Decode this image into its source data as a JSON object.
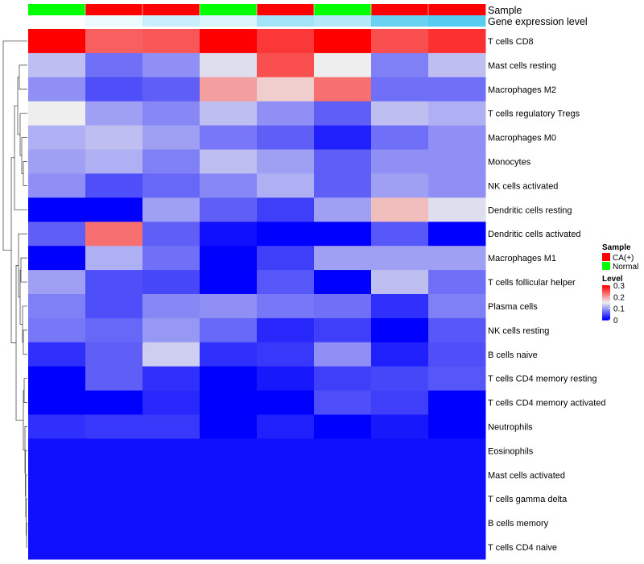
{
  "chart_data": {
    "type": "heatmap",
    "annotations": {
      "sample_label": "Sample",
      "expression_label": "Gene expression level",
      "sample": [
        "Normal",
        "CA(+)",
        "CA(+)",
        "Normal",
        "CA(+)",
        "Normal",
        "CA(+)",
        "CA(+)"
      ],
      "expression_level": [
        0.0,
        0.1,
        0.3,
        0.2,
        0.5,
        0.4,
        0.8,
        0.9
      ]
    },
    "rows": [
      "T cells CD8",
      "Mast cells resting",
      "Macrophages M2",
      "T cells regulatory  Tregs",
      "Macrophages M0",
      "Monocytes",
      "NK cells activated",
      "Dendritic cells resting",
      "Dendritic cells activated",
      "Macrophages M1",
      "T cells follicular helper",
      "Plasma cells",
      "NK cells resting",
      "B cells naive",
      "T cells CD4 memory resting",
      "T cells CD4 memory activated",
      "Neutrophils",
      "Eosinophils",
      "Mast cells activated",
      "T cells gamma delta",
      "B cells memory",
      "T cells CD4 naive"
    ],
    "values": [
      [
        0.3,
        0.24,
        0.245,
        0.3,
        0.265,
        0.3,
        0.25,
        0.27
      ],
      [
        0.12,
        0.07,
        0.09,
        0.14,
        0.25,
        0.15,
        0.08,
        0.12
      ],
      [
        0.09,
        0.05,
        0.06,
        0.2,
        0.17,
        0.23,
        0.07,
        0.07
      ],
      [
        0.15,
        0.1,
        0.085,
        0.12,
        0.09,
        0.06,
        0.12,
        0.11
      ],
      [
        0.11,
        0.12,
        0.1,
        0.075,
        0.06,
        0.02,
        0.07,
        0.09
      ],
      [
        0.1,
        0.11,
        0.08,
        0.12,
        0.1,
        0.06,
        0.09,
        0.09
      ],
      [
        0.09,
        0.05,
        0.065,
        0.085,
        0.11,
        0.06,
        0.1,
        0.09
      ],
      [
        0.0,
        0.0,
        0.1,
        0.06,
        0.04,
        0.1,
        0.18,
        0.14
      ],
      [
        0.06,
        0.23,
        0.06,
        0.01,
        0.0,
        0.0,
        0.055,
        0.0
      ],
      [
        0.0,
        0.11,
        0.07,
        0.0,
        0.04,
        0.1,
        0.1,
        0.1
      ],
      [
        0.1,
        0.05,
        0.045,
        0.0,
        0.055,
        0.0,
        0.12,
        0.07
      ],
      [
        0.08,
        0.05,
        0.085,
        0.09,
        0.075,
        0.07,
        0.03,
        0.08
      ],
      [
        0.075,
        0.065,
        0.095,
        0.065,
        0.025,
        0.04,
        0.0,
        0.055
      ],
      [
        0.03,
        0.06,
        0.13,
        0.03,
        0.035,
        0.09,
        0.02,
        0.05
      ],
      [
        0.0,
        0.06,
        0.03,
        0.0,
        0.015,
        0.04,
        0.045,
        0.055
      ],
      [
        0.0,
        0.0,
        0.025,
        0.0,
        0.0,
        0.05,
        0.04,
        0.0
      ],
      [
        0.03,
        0.035,
        0.035,
        0.0,
        0.02,
        0.0,
        0.015,
        0.0
      ],
      [
        0.01,
        0.01,
        0.01,
        0.01,
        0.01,
        0.01,
        0.01,
        0.01
      ],
      [
        0.01,
        0.01,
        0.01,
        0.01,
        0.01,
        0.01,
        0.01,
        0.01
      ],
      [
        0.01,
        0.01,
        0.01,
        0.01,
        0.01,
        0.01,
        0.01,
        0.01
      ],
      [
        0.01,
        0.01,
        0.01,
        0.01,
        0.01,
        0.01,
        0.01,
        0.01
      ],
      [
        0.01,
        0.01,
        0.01,
        0.01,
        0.01,
        0.01,
        0.01,
        0.01
      ]
    ],
    "color_range": [
      0,
      0.3
    ],
    "colors": {
      "low": "#0000ff",
      "mid": "#eeeeee",
      "high": "#ff0000"
    },
    "legend": {
      "sample_title": "Sample",
      "sample_items": [
        {
          "label": "CA(+)",
          "color": "#ff0000"
        },
        {
          "label": "Normal",
          "color": "#00ff00"
        }
      ],
      "level_title": "Level",
      "level_ticks": [
        "0.3",
        "0.2",
        "0.1",
        "0"
      ],
      "level_tick_values": [
        0.3,
        0.2,
        0.1,
        0
      ]
    },
    "expression_colors": {
      "low": "#ffffff",
      "high": "#44c6ef"
    }
  }
}
